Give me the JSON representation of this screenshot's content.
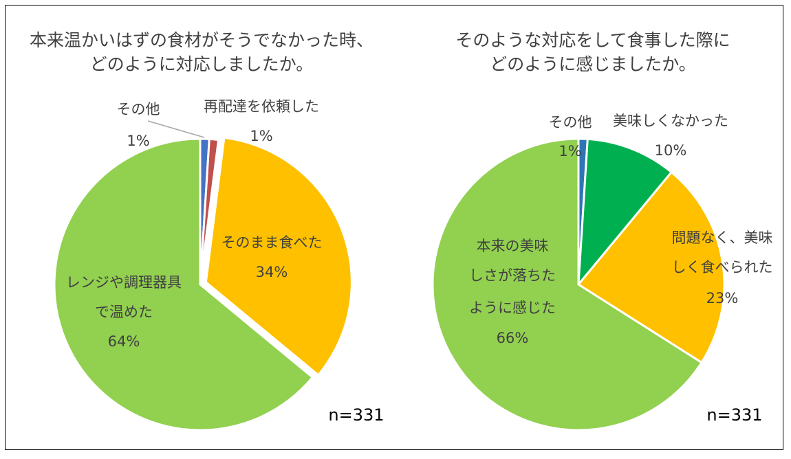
{
  "chart_data": [
    {
      "type": "pie",
      "title_lines": [
        "本来温かいはずの食材がそうでなかった時、",
        "どのように対応しましたか。"
      ],
      "n_label": "n=331",
      "slices": [
        {
          "label_lines": [
            "その他"
          ],
          "value": 1,
          "value_label": "1%",
          "color": "#4472C4"
        },
        {
          "label_lines": [
            "再配達を依頼した"
          ],
          "value": 1,
          "value_label": "1%",
          "color": "#C0504D"
        },
        {
          "label_lines": [
            "そのまま食べた"
          ],
          "value": 34,
          "value_label": "34%",
          "color": "#FFC000"
        },
        {
          "label_lines": [
            "レンジや調理器具",
            "で温めた"
          ],
          "value": 64,
          "value_label": "64%",
          "color": "#92D050"
        }
      ]
    },
    {
      "type": "pie",
      "title_lines": [
        "そのような対応をして食事した際に",
        "どのように感じましたか。"
      ],
      "n_label": "n=331",
      "slices": [
        {
          "label_lines": [
            "その他"
          ],
          "value": 1,
          "value_label": "1%",
          "color": "#2E75B6"
        },
        {
          "label_lines": [
            "美味しくなかった"
          ],
          "value": 10,
          "value_label": "10%",
          "color": "#00B050"
        },
        {
          "label_lines": [
            "問題なく、美味",
            "しく食べられた"
          ],
          "value": 23,
          "value_label": "23%",
          "color": "#FFC000"
        },
        {
          "label_lines": [
            "本来の美味",
            "しさが落ちた",
            "ように感じた"
          ],
          "value": 66,
          "value_label": "66%",
          "color": "#92D050"
        }
      ]
    }
  ]
}
